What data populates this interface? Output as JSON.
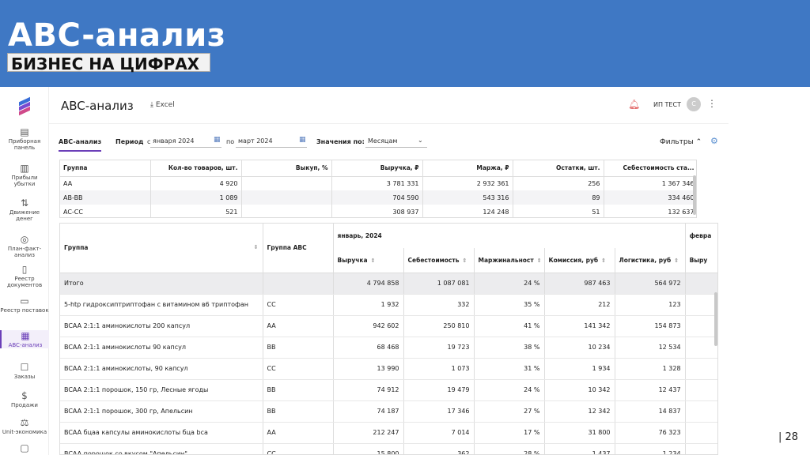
{
  "slide": {
    "title": "ABC-анализ",
    "subtitle": "БИЗНЕС НА ЦИФРАХ",
    "page_number": "| 28"
  },
  "app": {
    "title": "ABC-анализ",
    "excel_label": "Excel",
    "user_name": "ИП ТЕСТ",
    "avatar_initial": "С"
  },
  "sidebar": {
    "items": [
      {
        "label": "Приборная панель",
        "icon": "dashboard-icon"
      },
      {
        "label": "Прибыли убытки",
        "icon": "bar-chart-icon"
      },
      {
        "label": "Движение денег",
        "icon": "money-flow-icon"
      },
      {
        "label": "План-факт-анализ",
        "icon": "target-icon"
      },
      {
        "label": "Реестр документов",
        "icon": "document-icon"
      },
      {
        "label": "Реестр поставок",
        "icon": "truck-icon"
      },
      {
        "label": "ABC-анализ",
        "icon": "abc-icon"
      },
      {
        "label": "Заказы",
        "icon": "orders-icon"
      },
      {
        "label": "Продажи",
        "icon": "dollar-icon"
      },
      {
        "label": "Unit-экономика",
        "icon": "scale-icon"
      },
      {
        "label": "",
        "icon": "box-icon"
      }
    ]
  },
  "filterbar": {
    "tab": "ABC-анализ",
    "period_label": "Период",
    "from_label": "с",
    "from_value": "января 2024",
    "to_label": "по",
    "to_value": "март 2024",
    "values_label": "Значения по:",
    "values_value": "Месяцам",
    "filters_label": "Фильтры"
  },
  "summary": {
    "columns": [
      "Группа",
      "Кол-во товаров, шт.",
      "Выкуп, %",
      "Выручка, ₽",
      "Маржа, ₽",
      "Остатки, шт.",
      "Себестоимость ста..."
    ],
    "rows": [
      [
        "AA",
        "4 920",
        "",
        "3 781 331",
        "2 932 361",
        "256",
        "1 367 346"
      ],
      [
        "AB-BB",
        "1 089",
        "",
        "704 590",
        "543 316",
        "89",
        "334 460"
      ],
      [
        "AC-CC",
        "521",
        "",
        "308 937",
        "124 248",
        "51",
        "132 637"
      ]
    ]
  },
  "main": {
    "col_group": "Группа",
    "col_abc": "Группа ABC",
    "month": "январь, 2024",
    "next_month": "февра",
    "sub_columns": [
      "Выручка",
      "Себестоимость",
      "Маржинальност",
      "Комиссия, руб",
      "Логистика, руб",
      "Выру"
    ],
    "total": {
      "name": "Итого",
      "abc": "",
      "revenue": "4 794 858",
      "cost": "1 087 081",
      "margin": "24 %",
      "commission": "987 463",
      "logistics": "564 972"
    },
    "rows": [
      {
        "name": "5-htp гидроксиптриптофан с витамином в6 триптофан",
        "abc": "CC",
        "revenue": "1 932",
        "cost": "332",
        "margin": "35 %",
        "commission": "212",
        "logistics": "123"
      },
      {
        "name": "BCAA 2:1:1 аминокислоты 200 капсул",
        "abc": "AA",
        "revenue": "942 602",
        "cost": "250 810",
        "margin": "41 %",
        "commission": "141 342",
        "logistics": "154 873"
      },
      {
        "name": "BCAA 2:1:1 аминокислоты 90 капсул",
        "abc": "BB",
        "revenue": "68 468",
        "cost": "19 723",
        "margin": "38 %",
        "commission": "10 234",
        "logistics": "12 534"
      },
      {
        "name": "BCAA 2:1:1 аминокислоты, 90 капсул",
        "abc": "CC",
        "revenue": "13 990",
        "cost": "1 073",
        "margin": "31 %",
        "commission": "1 934",
        "logistics": "1 328"
      },
      {
        "name": "BCAA 2:1:1 порошок, 150 гр, Лесные ягоды",
        "abc": "BB",
        "revenue": "74 912",
        "cost": "19 479",
        "margin": "24 %",
        "commission": "10 342",
        "logistics": "12 437"
      },
      {
        "name": "BCAA 2:1:1 порошок, 300 гр, Апельсин",
        "abc": "BB",
        "revenue": "74 187",
        "cost": "17 346",
        "margin": "27 %",
        "commission": "12 342",
        "logistics": "14 837"
      },
      {
        "name": "BCAA бцаа капсулы аминокислоты бца bca",
        "abc": "AA",
        "revenue": "212 247",
        "cost": "7 014",
        "margin": "17 %",
        "commission": "31 800",
        "logistics": "76 323"
      },
      {
        "name": "BCAA порошок со вкусом \"Апельсин\"",
        "abc": "CC",
        "revenue": "15 800",
        "cost": "362",
        "margin": "28 %",
        "commission": "1 437",
        "logistics": "1 234"
      }
    ]
  }
}
